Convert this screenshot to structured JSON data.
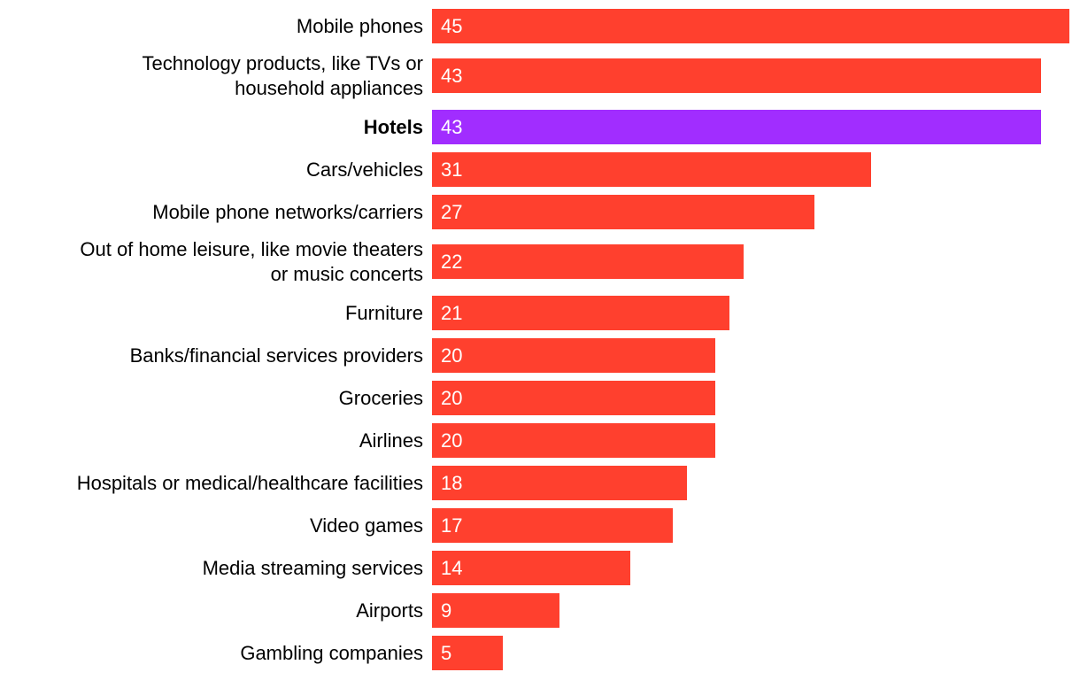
{
  "chart_data": {
    "type": "bar",
    "orientation": "horizontal",
    "categories": [
      [
        "Mobile phones"
      ],
      [
        "Technology products, like TVs or",
        "household appliances"
      ],
      [
        "Hotels"
      ],
      [
        "Cars/vehicles"
      ],
      [
        "Mobile phone networks/carriers"
      ],
      [
        "Out of home leisure, like movie theaters",
        "or music concerts"
      ],
      [
        "Furniture"
      ],
      [
        "Banks/financial services providers"
      ],
      [
        "Groceries"
      ],
      [
        "Airlines"
      ],
      [
        "Hospitals or medical/healthcare facilities"
      ],
      [
        "Video games"
      ],
      [
        "Media streaming services"
      ],
      [
        "Airports"
      ],
      [
        "Gambling companies"
      ]
    ],
    "values": [
      45,
      43,
      43,
      31,
      27,
      22,
      21,
      20,
      20,
      20,
      18,
      17,
      14,
      9,
      5
    ],
    "highlight_index": 2,
    "xlim": [
      0,
      45
    ],
    "title": "",
    "xlabel": "",
    "ylabel": "",
    "grid": false,
    "legend": "none"
  },
  "colors": {
    "bar": "#ff402e",
    "highlight": "#a12dff",
    "value_text": "#ffffff",
    "label_text": "#000000"
  }
}
